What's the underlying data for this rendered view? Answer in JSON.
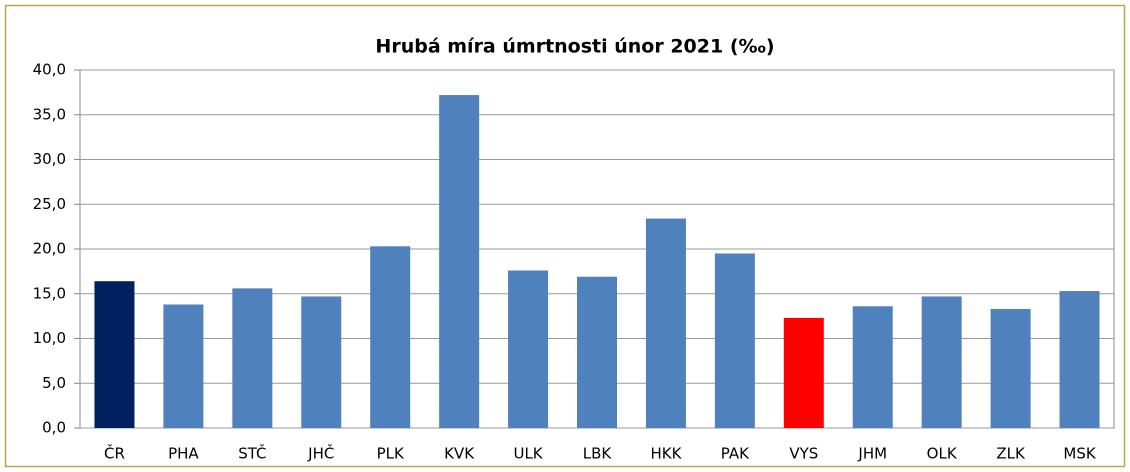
{
  "chart_data": {
    "type": "bar",
    "title": "Hrubá míra úmrtnosti únor 2021 (‰)",
    "categories": [
      "ČR",
      "PHA",
      "STČ",
      "JHČ",
      "PLK",
      "KVK",
      "ULK",
      "LBK",
      "HKK",
      "PAK",
      "VYS",
      "JHM",
      "OLK",
      "ZLK",
      "MSK"
    ],
    "values": [
      16.4,
      13.8,
      15.6,
      14.7,
      20.3,
      37.2,
      17.6,
      16.9,
      23.4,
      19.5,
      12.3,
      13.6,
      14.7,
      13.3,
      15.3
    ],
    "colors": [
      "#002060",
      "#4f81bd",
      "#4f81bd",
      "#4f81bd",
      "#4f81bd",
      "#4f81bd",
      "#4f81bd",
      "#4f81bd",
      "#4f81bd",
      "#4f81bd",
      "#ff0000",
      "#4f81bd",
      "#4f81bd",
      "#4f81bd",
      "#4f81bd"
    ],
    "ylim": [
      0,
      40
    ],
    "yticks": [
      {
        "value": 0,
        "label": "0,0"
      },
      {
        "value": 5,
        "label": "5,0"
      },
      {
        "value": 10,
        "label": "10,0"
      },
      {
        "value": 15,
        "label": "15,0"
      },
      {
        "value": 20,
        "label": "20,0"
      },
      {
        "value": 25,
        "label": "25,0"
      },
      {
        "value": 30,
        "label": "30,0"
      },
      {
        "value": 35,
        "label": "35,0"
      },
      {
        "value": 40,
        "label": "40,0"
      }
    ],
    "grid": true
  }
}
